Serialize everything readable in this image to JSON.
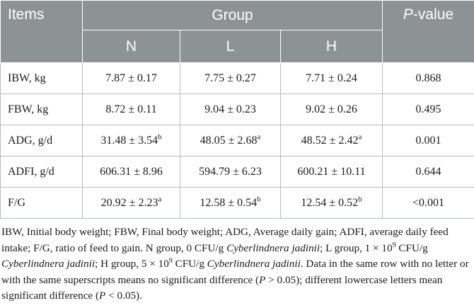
{
  "header": {
    "items": "Items",
    "group": "Group",
    "pvalue_p": "P",
    "pvalue_rest": "-value",
    "groups": [
      "N",
      "L",
      "H"
    ]
  },
  "rows": [
    {
      "label": "IBW, kg",
      "cells": [
        {
          "v": "7.87 ± 0.17",
          "s": ""
        },
        {
          "v": "7.75 ± 0.27",
          "s": ""
        },
        {
          "v": "7.71 ± 0.24",
          "s": ""
        }
      ],
      "p": "0.868"
    },
    {
      "label": "FBW, kg",
      "cells": [
        {
          "v": "8.72 ± 0.11",
          "s": ""
        },
        {
          "v": "9.04 ± 0.23",
          "s": ""
        },
        {
          "v": "9.02 ± 0.26",
          "s": ""
        }
      ],
      "p": "0.495"
    },
    {
      "label": "ADG, g/d",
      "cells": [
        {
          "v": "31.48 ± 3.54",
          "s": "b"
        },
        {
          "v": "48.05 ± 2.68",
          "s": "a"
        },
        {
          "v": "48.52 ± 2.42",
          "s": "a"
        }
      ],
      "p": "0.001"
    },
    {
      "label": "ADFI, g/d",
      "cells": [
        {
          "v": "606.31 ± 8.96",
          "s": ""
        },
        {
          "v": "594.79 ± 6.23",
          "s": ""
        },
        {
          "v": "600.21 ± 10.11",
          "s": ""
        }
      ],
      "p": "0.644"
    },
    {
      "label": "F/G",
      "cells": [
        {
          "v": "20.92 ± 2.23",
          "s": "a"
        },
        {
          "v": "12.58 ± 0.54",
          "s": "b"
        },
        {
          "v": "12.54 ± 0.52",
          "s": "b"
        }
      ],
      "p": "<0.001"
    }
  ],
  "footnote": {
    "t1": "IBW, Initial body weight; FBW, Final body weight; ADG, Average daily gain; ADFI, average daily feed intake; F/G, ratio of feed to gain. N group, 0 CFU/g ",
    "species": "Cyberlindnera jadinii",
    "t2": "; L group, 1 × 10",
    "exp_l": "9",
    "t3": " CFU/g ",
    "t4": "; H group, 5 × 10",
    "exp_h": "9",
    "t5": " CFU/g ",
    "t6": ". Data in the same row with no letter or with the same superscripts means no significant difference (",
    "p": "P",
    "t7": " > 0.05); different lowercase letters mean significant difference (",
    "t8": " < 0.05)."
  }
}
